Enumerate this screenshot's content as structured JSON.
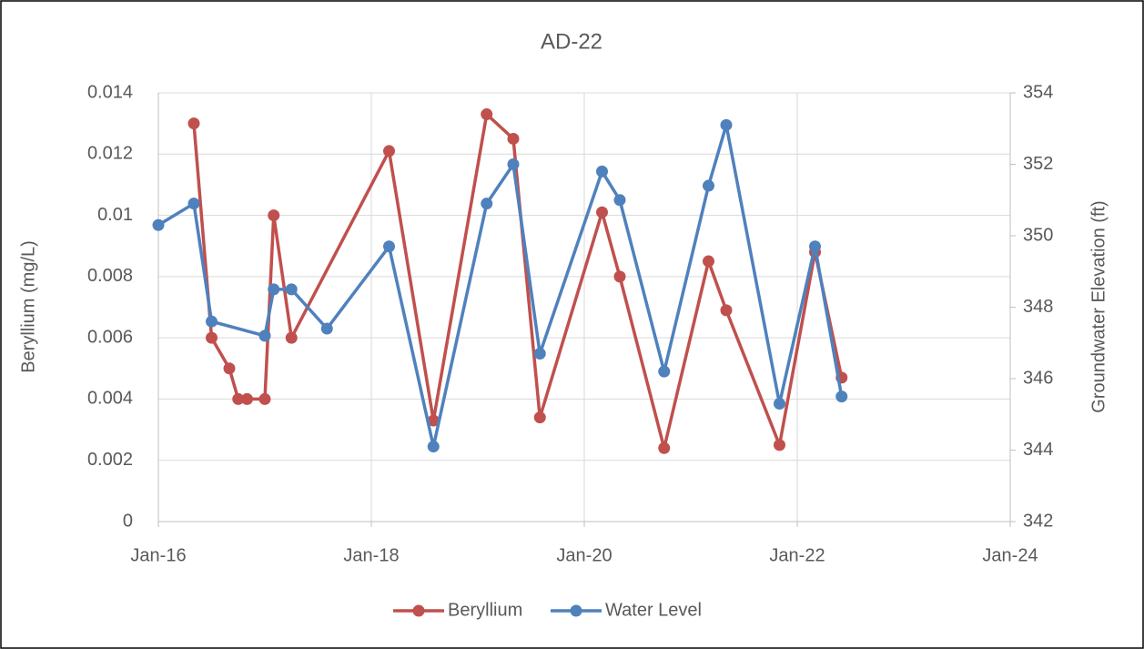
{
  "chart_data": {
    "type": "line",
    "title": "AD-22",
    "y_label": "Beryllium (mg/L)",
    "y2_label": "Groundwater Elevation (ft)",
    "xlim": [
      "2016-01",
      "2024-01"
    ],
    "xticks": [
      {
        "value": "2016-01",
        "label": "Jan-16"
      },
      {
        "value": "2018-01",
        "label": "Jan-18"
      },
      {
        "value": "2020-01",
        "label": "Jan-20"
      },
      {
        "value": "2022-01",
        "label": "Jan-22"
      },
      {
        "value": "2024-01",
        "label": "Jan-24"
      }
    ],
    "ylim": [
      0,
      0.014
    ],
    "yticks": [
      0,
      0.002,
      0.004,
      0.006,
      0.008,
      0.01,
      0.012,
      0.014
    ],
    "y2lim": [
      342,
      354
    ],
    "y2ticks": [
      342,
      344,
      346,
      348,
      350,
      352,
      354
    ],
    "grid": true,
    "legend": "bottom",
    "series": [
      {
        "name": "Beryllium",
        "color": "#c0504d",
        "x": [
          "2016-05",
          "2016-07",
          "2016-09",
          "2016-10",
          "2016-11",
          "2017-01",
          "2017-02",
          "2017-04",
          "2018-03",
          "2018-08",
          "2019-02",
          "2019-05",
          "2019-08",
          "2020-03",
          "2020-05",
          "2020-10",
          "2021-03",
          "2021-05",
          "2021-11",
          "2022-03",
          "2022-06"
        ],
        "values": [
          0.013,
          0.006,
          0.005,
          0.004,
          0.004,
          0.004,
          0.01,
          0.006,
          0.0121,
          0.0033,
          0.0133,
          0.0125,
          0.0034,
          0.0101,
          0.008,
          0.0024,
          0.0085,
          0.0069,
          0.0025,
          0.0088,
          0.0047
        ]
      },
      {
        "name": "Water Level",
        "color": "#4f81bd",
        "axis": "y2",
        "x": [
          "2016-01",
          "2016-05",
          "2016-07",
          "2017-01",
          "2017-02",
          "2017-04",
          "2017-08",
          "2018-03",
          "2018-08",
          "2019-02",
          "2019-05",
          "2019-08",
          "2020-03",
          "2020-05",
          "2020-10",
          "2021-03",
          "2021-05",
          "2021-11",
          "2022-03",
          "2022-06"
        ],
        "values": [
          350.3,
          350.9,
          347.6,
          347.2,
          348.5,
          348.5,
          347.4,
          349.7,
          344.1,
          350.9,
          352.0,
          346.7,
          351.8,
          351.0,
          346.2,
          351.4,
          353.1,
          345.3,
          349.7,
          345.5
        ]
      }
    ]
  }
}
